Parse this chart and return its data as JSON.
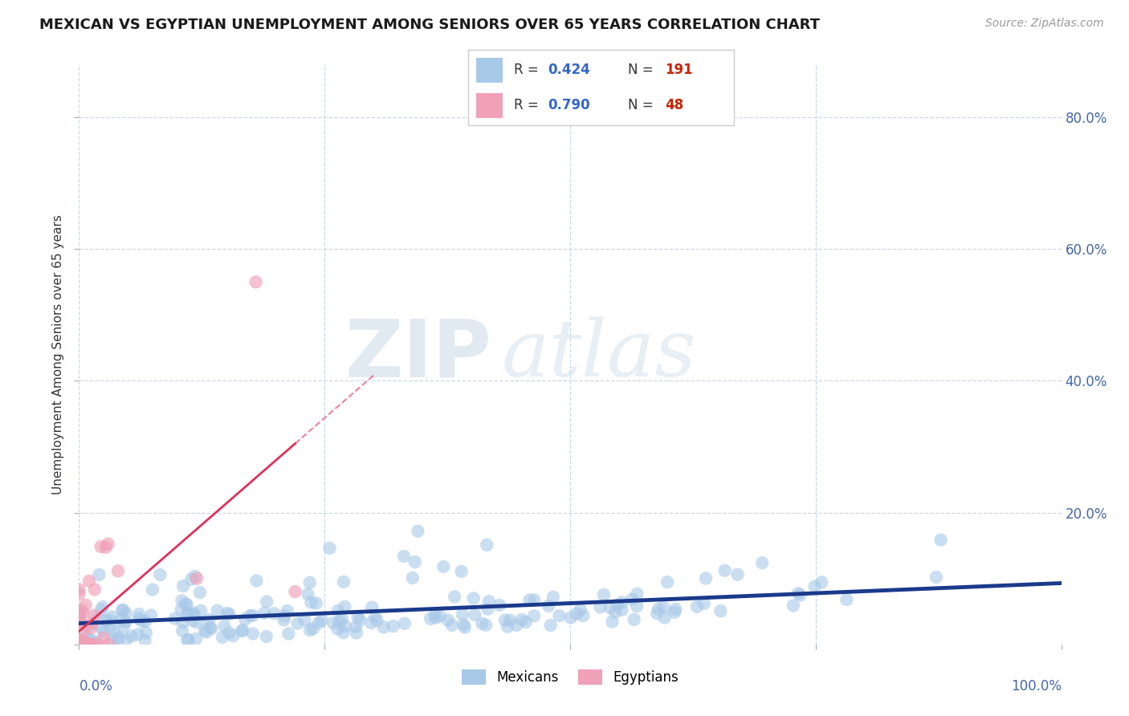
{
  "title": "MEXICAN VS EGYPTIAN UNEMPLOYMENT AMONG SENIORS OVER 65 YEARS CORRELATION CHART",
  "source": "Source: ZipAtlas.com",
  "ylabel": "Unemployment Among Seniors over 65 years",
  "ytick_vals": [
    0.0,
    0.2,
    0.4,
    0.6,
    0.8
  ],
  "ytick_labels": [
    "",
    "20.0%",
    "40.0%",
    "60.0%",
    "80.0%"
  ],
  "mexican_color": "#a8c8e8",
  "mexican_line_color": "#1a3a8a",
  "egyptian_color": "#f0a0b8",
  "egyptian_line_color": "#e0305a",
  "background_color": "#ffffff",
  "grid_color": "#c8d8e8",
  "xlim": [
    0.0,
    1.0
  ],
  "ylim": [
    0.0,
    0.88
  ],
  "watermark_zip": "ZIP",
  "watermark_atlas": "atlas",
  "title_fontsize": 13,
  "source_fontsize": 10
}
